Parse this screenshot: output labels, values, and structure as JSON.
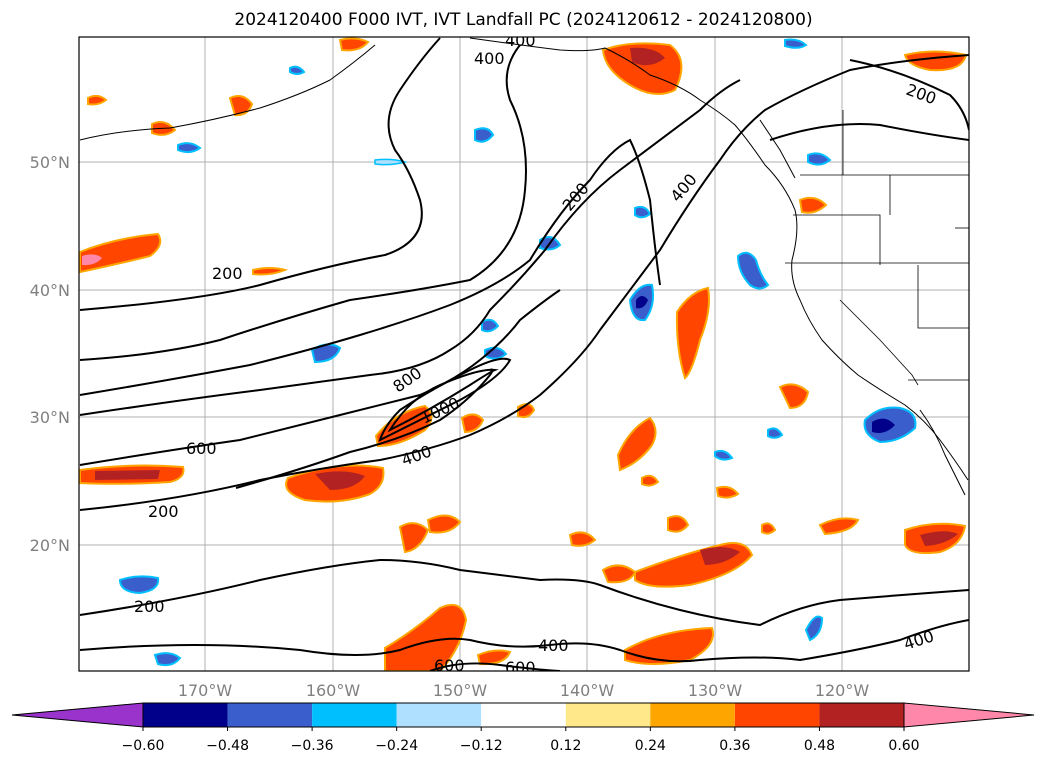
{
  "title": "2024120400 F000 IVT, IVT Landfall PC (2024120612 - 2024120800)",
  "axes": {
    "lat_labels": [
      "50°N",
      "40°N",
      "30°N",
      "20°N"
    ],
    "lon_labels": [
      "170°W",
      "160°W",
      "150°W",
      "140°W",
      "130°W",
      "120°W"
    ]
  },
  "contour_labels": [
    {
      "text": "400"
    },
    {
      "text": "400"
    },
    {
      "text": "200"
    },
    {
      "text": "200"
    },
    {
      "text": "400"
    },
    {
      "text": "200"
    },
    {
      "text": "800"
    },
    {
      "text": "1000"
    },
    {
      "text": "600"
    },
    {
      "text": "400"
    },
    {
      "text": "200"
    },
    {
      "text": "200"
    },
    {
      "text": "400"
    },
    {
      "text": "600"
    },
    {
      "text": "600"
    },
    {
      "text": "400"
    }
  ],
  "colorbar": {
    "colors": [
      "#9933cc",
      "#00008b",
      "#3a5fcd",
      "#00bfff",
      "#b0e0ff",
      "#ffffff",
      "#ffe88a",
      "#ffa500",
      "#ff4500",
      "#b22222",
      "#ff88aa"
    ],
    "ticks": [
      "−0.60",
      "−0.48",
      "−0.36",
      "−0.24",
      "−0.12",
      "0.12",
      "0.24",
      "0.36",
      "0.48",
      "0.60"
    ]
  }
}
